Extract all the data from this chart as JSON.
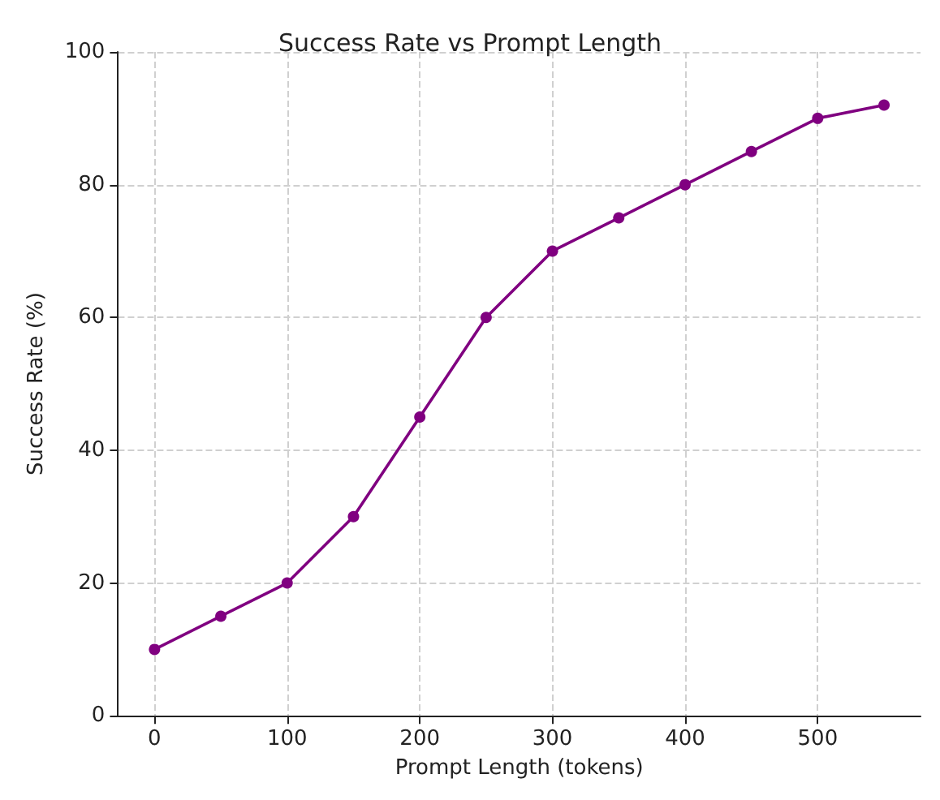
{
  "chart_data": {
    "type": "line",
    "title": "Success Rate vs Prompt Length",
    "xlabel": "Prompt Length (tokens)",
    "ylabel": "Success Rate (%)",
    "x": [
      0,
      50,
      100,
      150,
      200,
      250,
      300,
      350,
      400,
      450,
      500,
      550
    ],
    "series": [
      {
        "color": "#800080",
        "values": [
          10,
          15,
          20,
          30,
          45,
          60,
          70,
          75,
          80,
          85,
          90,
          92
        ]
      }
    ],
    "xlim": [
      -27.5,
      577.5
    ],
    "xticks": [
      0,
      100,
      200,
      300,
      400,
      500
    ],
    "ylim": [
      0,
      100
    ],
    "yticks": [
      0,
      20,
      40,
      60,
      80,
      100
    ],
    "grid": true,
    "marker": "circle",
    "line_style": "solid"
  }
}
